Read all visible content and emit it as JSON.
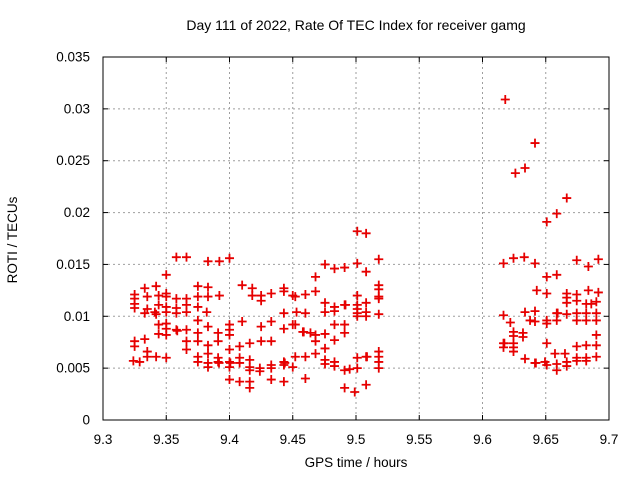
{
  "chart_data": {
    "type": "scatter",
    "title": "Day 111 of 2022, Rate Of TEC Index for receiver gamg",
    "xlabel": "GPS time / hours",
    "ylabel": "ROTI / TECUs",
    "xlim": [
      9.3,
      9.7
    ],
    "ylim": [
      0,
      0.035
    ],
    "grid": true,
    "legend": "none",
    "marker": "plus",
    "colors": {
      "marker": "#e60000",
      "grid": "#9e9e9e",
      "frame": "#000000",
      "background": "#ffffff"
    },
    "x_ticks": [
      {
        "v": 9.3,
        "label": "9.3"
      },
      {
        "v": 9.35,
        "label": "9.35"
      },
      {
        "v": 9.4,
        "label": "9.4"
      },
      {
        "v": 9.45,
        "label": "9.45"
      },
      {
        "v": 9.5,
        "label": "9.5"
      },
      {
        "v": 9.55,
        "label": "9.55"
      },
      {
        "v": 9.6,
        "label": "9.6"
      },
      {
        "v": 9.65,
        "label": "9.65"
      },
      {
        "v": 9.7,
        "label": "9.7"
      }
    ],
    "y_ticks": [
      {
        "v": 0,
        "label": "0"
      },
      {
        "v": 0.005,
        "label": "0.005"
      },
      {
        "v": 0.01,
        "label": "0.01"
      },
      {
        "v": 0.015,
        "label": "0.015"
      },
      {
        "v": 0.02,
        "label": "0.02"
      },
      {
        "v": 0.025,
        "label": "0.025"
      },
      {
        "v": 0.03,
        "label": "0.03"
      },
      {
        "v": 0.035,
        "label": "0.035"
      }
    ],
    "series": [
      {
        "name": "ROTI",
        "points": [
          [
            9.325,
            0.0121
          ],
          [
            9.325,
            0.0117
          ],
          [
            9.325,
            0.0112
          ],
          [
            9.325,
            0.0108
          ],
          [
            9.325,
            0.0076
          ],
          [
            9.325,
            0.0071
          ],
          [
            9.324,
            0.0057
          ],
          [
            9.329,
            0.0056
          ],
          [
            9.333,
            0.0127
          ],
          [
            9.333,
            0.0103
          ],
          [
            9.333,
            0.0078
          ],
          [
            9.335,
            0.0119
          ],
          [
            9.335,
            0.0107
          ],
          [
            9.335,
            0.0066
          ],
          [
            9.335,
            0.0061
          ],
          [
            9.341,
            0.0104
          ],
          [
            9.342,
            0.0129
          ],
          [
            9.342,
            0.0102
          ],
          [
            9.342,
            0.0061
          ],
          [
            9.344,
            0.012
          ],
          [
            9.344,
            0.0111
          ],
          [
            9.344,
            0.0092
          ],
          [
            9.344,
            0.0083
          ],
          [
            9.35,
            0.014
          ],
          [
            9.35,
            0.0122
          ],
          [
            9.35,
            0.0119
          ],
          [
            9.35,
            0.0109
          ],
          [
            9.35,
            0.0104
          ],
          [
            9.35,
            0.0093
          ],
          [
            9.35,
            0.0088
          ],
          [
            9.35,
            0.0082
          ],
          [
            9.35,
            0.006
          ],
          [
            9.358,
            0.0157
          ],
          [
            9.358,
            0.0117
          ],
          [
            9.358,
            0.0108
          ],
          [
            9.358,
            0.0103
          ],
          [
            9.358,
            0.0087
          ],
          [
            9.3587,
            0.0086
          ],
          [
            9.366,
            0.0157
          ],
          [
            9.366,
            0.0117
          ],
          [
            9.366,
            0.0111
          ],
          [
            9.366,
            0.0104
          ],
          [
            9.366,
            0.0087
          ],
          [
            9.366,
            0.0076
          ],
          [
            9.366,
            0.0068
          ],
          [
            9.375,
            0.0129
          ],
          [
            9.375,
            0.0119
          ],
          [
            9.375,
            0.0109
          ],
          [
            9.375,
            0.0096
          ],
          [
            9.375,
            0.0084
          ],
          [
            9.375,
            0.0076
          ],
          [
            9.375,
            0.0061
          ],
          [
            9.375,
            0.0056
          ],
          [
            9.383,
            0.0153
          ],
          [
            9.392,
            0.0153
          ],
          [
            9.4,
            0.0156
          ],
          [
            9.383,
            0.0128
          ],
          [
            9.383,
            0.0119
          ],
          [
            9.392,
            0.012
          ],
          [
            9.41,
            0.013
          ],
          [
            9.418,
            0.0127
          ],
          [
            9.418,
            0.012
          ],
          [
            9.425,
            0.012
          ],
          [
            9.425,
            0.0115
          ],
          [
            9.433,
            0.0122
          ],
          [
            9.443,
            0.0127
          ],
          [
            9.443,
            0.0124
          ],
          [
            9.45,
            0.012
          ],
          [
            9.382,
            0.0104
          ],
          [
            9.443,
            0.0103
          ],
          [
            9.383,
            0.009
          ],
          [
            9.391,
            0.0084
          ],
          [
            9.391,
            0.0076
          ],
          [
            9.391,
            0.006
          ],
          [
            9.391,
            0.0056
          ],
          [
            9.3917,
            0.0055
          ],
          [
            9.4,
            0.0092
          ],
          [
            9.4,
            0.0087
          ],
          [
            9.4,
            0.0082
          ],
          [
            9.4,
            0.0068
          ],
          [
            9.4,
            0.0056
          ],
          [
            9.4007,
            0.0055
          ],
          [
            9.4,
            0.0051
          ],
          [
            9.4,
            0.0039
          ],
          [
            9.408,
            0.0071
          ],
          [
            9.408,
            0.006
          ],
          [
            9.408,
            0.0055
          ],
          [
            9.408,
            0.0037
          ],
          [
            9.41,
            0.0095
          ],
          [
            9.416,
            0.0074
          ],
          [
            9.416,
            0.0058
          ],
          [
            9.416,
            0.0051
          ],
          [
            9.416,
            0.0048
          ],
          [
            9.416,
            0.0037
          ],
          [
            9.416,
            0.0031
          ],
          [
            9.425,
            0.009
          ],
          [
            9.425,
            0.0076
          ],
          [
            9.424,
            0.005
          ],
          [
            9.424,
            0.0047
          ],
          [
            9.433,
            0.0095
          ],
          [
            9.433,
            0.0076
          ],
          [
            9.433,
            0.0053
          ],
          [
            9.433,
            0.005
          ],
          [
            9.433,
            0.0039
          ],
          [
            9.443,
            0.0088
          ],
          [
            9.443,
            0.0056
          ],
          [
            9.4437,
            0.0055
          ],
          [
            9.443,
            0.0053
          ],
          [
            9.443,
            0.0037
          ],
          [
            9.45,
            0.0092
          ],
          [
            9.45,
            0.0051
          ],
          [
            9.383,
            0.0072
          ],
          [
            9.383,
            0.0064
          ],
          [
            9.383,
            0.0055
          ],
          [
            9.383,
            0.0051
          ],
          [
            9.501,
            0.0182
          ],
          [
            9.508,
            0.018
          ],
          [
            9.4755,
            0.015
          ],
          [
            9.483,
            0.0146
          ],
          [
            9.491,
            0.0147
          ],
          [
            9.501,
            0.0151
          ],
          [
            9.508,
            0.0143
          ],
          [
            9.518,
            0.0155
          ],
          [
            9.468,
            0.0138
          ],
          [
            9.468,
            0.0124
          ],
          [
            9.46,
            0.0121
          ],
          [
            9.452,
            0.0119
          ],
          [
            9.518,
            0.013
          ],
          [
            9.518,
            0.0126
          ],
          [
            9.518,
            0.0119
          ],
          [
            9.518,
            0.0117
          ],
          [
            9.4755,
            0.0113
          ],
          [
            9.483,
            0.0109
          ],
          [
            9.491,
            0.0111
          ],
          [
            9.4917,
            0.0111
          ],
          [
            9.501,
            0.012
          ],
          [
            9.501,
            0.0111
          ],
          [
            9.501,
            0.0107
          ],
          [
            9.508,
            0.0113
          ],
          [
            9.453,
            0.0104
          ],
          [
            9.46,
            0.0103
          ],
          [
            9.4755,
            0.0104
          ],
          [
            9.483,
            0.0105
          ],
          [
            9.501,
            0.0103
          ],
          [
            9.501,
            0.01
          ],
          [
            9.508,
            0.0104
          ],
          [
            9.508,
            0.01
          ],
          [
            9.518,
            0.0102
          ],
          [
            9.452,
            0.0092
          ],
          [
            9.458,
            0.0085
          ],
          [
            9.4587,
            0.0085
          ],
          [
            9.464,
            0.0084
          ],
          [
            9.468,
            0.0082
          ],
          [
            9.468,
            0.0076
          ],
          [
            9.4755,
            0.0083
          ],
          [
            9.4755,
            0.0069
          ],
          [
            9.483,
            0.0092
          ],
          [
            9.483,
            0.0077
          ],
          [
            9.491,
            0.0092
          ],
          [
            9.491,
            0.0084
          ],
          [
            9.452,
            0.0061
          ],
          [
            9.46,
            0.0061
          ],
          [
            9.468,
            0.0064
          ],
          [
            9.4755,
            0.0058
          ],
          [
            9.4755,
            0.0054
          ],
          [
            9.483,
            0.0056
          ],
          [
            9.483,
            0.0052
          ],
          [
            9.491,
            0.0048
          ],
          [
            9.495,
            0.0049
          ],
          [
            9.501,
            0.006
          ],
          [
            9.501,
            0.005
          ],
          [
            9.508,
            0.0061
          ],
          [
            9.5087,
            0.0061
          ],
          [
            9.518,
            0.0066
          ],
          [
            9.518,
            0.0061
          ],
          [
            9.518,
            0.0056
          ],
          [
            9.518,
            0.005
          ],
          [
            9.46,
            0.004
          ],
          [
            9.491,
            0.0031
          ],
          [
            9.499,
            0.0027
          ],
          [
            9.508,
            0.0034
          ],
          [
            9.618,
            0.0309
          ],
          [
            9.6415,
            0.0267
          ],
          [
            9.6336,
            0.0243
          ],
          [
            9.626,
            0.0238
          ],
          [
            9.6666,
            0.0214
          ],
          [
            9.6587,
            0.0199
          ],
          [
            9.6508,
            0.0191
          ],
          [
            9.6166,
            0.0151
          ],
          [
            9.6245,
            0.0156
          ],
          [
            9.633,
            0.0157
          ],
          [
            9.6415,
            0.0151
          ],
          [
            9.6745,
            0.0154
          ],
          [
            9.6837,
            0.0148
          ],
          [
            9.6916,
            0.0155
          ],
          [
            9.6508,
            0.0138
          ],
          [
            9.6587,
            0.014
          ],
          [
            9.6429,
            0.0125
          ],
          [
            9.6508,
            0.0122
          ],
          [
            9.6666,
            0.0122
          ],
          [
            9.6666,
            0.0118
          ],
          [
            9.6745,
            0.0121
          ],
          [
            9.6837,
            0.0125
          ],
          [
            9.6916,
            0.0123
          ],
          [
            9.6666,
            0.0113
          ],
          [
            9.6745,
            0.0115
          ],
          [
            9.682,
            0.0112
          ],
          [
            9.686,
            0.0112
          ],
          [
            9.69,
            0.0114
          ],
          [
            9.6166,
            0.0101
          ],
          [
            9.622,
            0.0094
          ],
          [
            9.6336,
            0.0104
          ],
          [
            9.6415,
            0.0105
          ],
          [
            9.6376,
            0.0096
          ],
          [
            9.6415,
            0.0095
          ],
          [
            9.6508,
            0.0096
          ],
          [
            9.6508,
            0.0093
          ],
          [
            9.6587,
            0.0103
          ],
          [
            9.6594,
            0.0103
          ],
          [
            9.6587,
            0.0096
          ],
          [
            9.6666,
            0.0102
          ],
          [
            9.6745,
            0.0103
          ],
          [
            9.6745,
            0.0096
          ],
          [
            9.682,
            0.0103
          ],
          [
            9.682,
            0.0096
          ],
          [
            9.69,
            0.0103
          ],
          [
            9.69,
            0.0096
          ],
          [
            9.6245,
            0.0085
          ],
          [
            9.6245,
            0.0081
          ],
          [
            9.632,
            0.0084
          ],
          [
            9.632,
            0.008
          ],
          [
            9.6166,
            0.0074
          ],
          [
            9.6173,
            0.0074
          ],
          [
            9.6166,
            0.007
          ],
          [
            9.6245,
            0.0074
          ],
          [
            9.6245,
            0.007
          ],
          [
            9.6245,
            0.0066
          ],
          [
            9.6508,
            0.0074
          ],
          [
            9.6336,
            0.0059
          ],
          [
            9.6415,
            0.0055
          ],
          [
            9.6422,
            0.0055
          ],
          [
            9.6494,
            0.0056
          ],
          [
            9.6508,
            0.0053
          ],
          [
            9.6587,
            0.0054
          ],
          [
            9.6587,
            0.0048
          ],
          [
            9.6573,
            0.0064
          ],
          [
            9.6652,
            0.0064
          ],
          [
            9.6666,
            0.0056
          ],
          [
            9.6666,
            0.0052
          ],
          [
            9.6745,
            0.0071
          ],
          [
            9.6745,
            0.006
          ],
          [
            9.6745,
            0.0057
          ],
          [
            9.682,
            0.0072
          ],
          [
            9.682,
            0.006
          ],
          [
            9.682,
            0.0057
          ],
          [
            9.69,
            0.0082
          ],
          [
            9.69,
            0.0072
          ],
          [
            9.69,
            0.0061
          ]
        ]
      }
    ]
  }
}
